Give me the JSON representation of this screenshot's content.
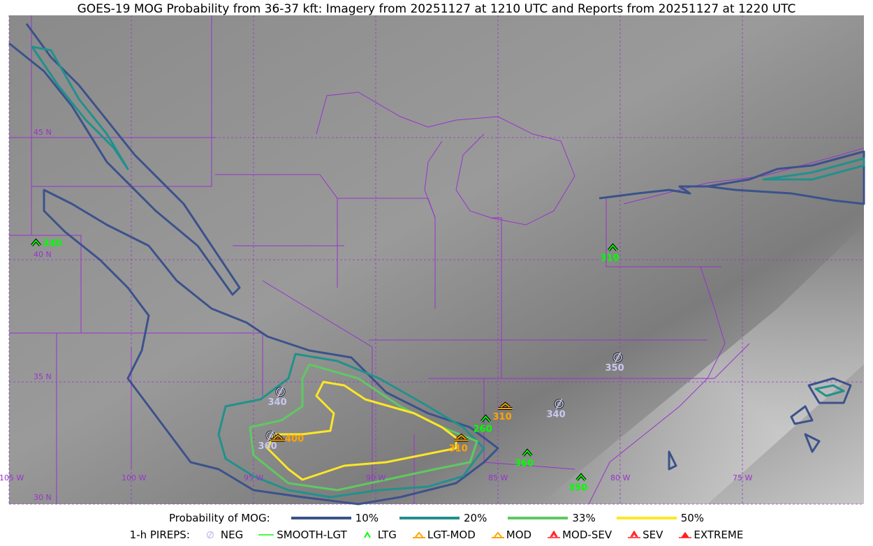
{
  "title": "GOES-19 MOG Probability from 36-37 kft: Imagery from 20251127 at 1210 UTC and Reports from 20251127 at 1220 UTC",
  "map": {
    "lon_labels": [
      "105 W",
      "100 W",
      "95 W",
      "90 W",
      "85 W",
      "80 W",
      "75 W"
    ],
    "lat_labels": [
      "45 N",
      "40 N",
      "35 N",
      "30 N"
    ],
    "colors": {
      "p10": "#3b528b",
      "p20": "#21918c",
      "p33": "#5ec962",
      "p50": "#fde725",
      "borders": "#9933cc",
      "neg": "#c8c8f0",
      "ltg": "#00ff00",
      "lgt_mod": "#ffa500"
    },
    "reports": [
      {
        "type": "LTG",
        "label": "340",
        "lon": -103.9,
        "lat": 40.7
      },
      {
        "type": "LTG",
        "label": "310",
        "lon": -80.3,
        "lat": 40.5
      },
      {
        "type": "NEG",
        "label": "350",
        "lon": -80.1,
        "lat": 36.0
      },
      {
        "type": "NEG",
        "label": "340",
        "lon": -93.9,
        "lat": 34.6
      },
      {
        "type": "NEG",
        "label": "340",
        "lon": -82.5,
        "lat": 34.1
      },
      {
        "type": "NEG",
        "label": "360",
        "lon": -94.3,
        "lat": 32.8
      },
      {
        "type": "LGT-MOD",
        "label": "400",
        "lon": -94.0,
        "lat": 32.7
      },
      {
        "type": "LGT-MOD",
        "label": "310",
        "lon": -84.7,
        "lat": 34.0
      },
      {
        "type": "LTG",
        "label": "260",
        "lon": -85.5,
        "lat": 33.5
      },
      {
        "type": "LGT-MOD",
        "label": "310",
        "lon": -86.5,
        "lat": 32.7
      },
      {
        "type": "LTG",
        "label": "360",
        "lon": -83.8,
        "lat": 32.1
      },
      {
        "type": "LTG",
        "label": "350",
        "lon": -81.6,
        "lat": 31.1
      }
    ]
  },
  "legend": {
    "prob_title": "Probability of MOG:",
    "prob_items": [
      {
        "label": "10%",
        "color": "#3b528b"
      },
      {
        "label": "20%",
        "color": "#21918c"
      },
      {
        "label": "33%",
        "color": "#5ec962"
      },
      {
        "label": "50%",
        "color": "#fde725"
      }
    ],
    "pirep_title": "1-h PIREPS:",
    "pirep_items": [
      {
        "label": "NEG",
        "icon": "neg-circle-slash",
        "color": "#c8c8f0"
      },
      {
        "label": "SMOOTH-LGT",
        "icon": "line",
        "color": "#00ff00"
      },
      {
        "label": "LTG",
        "icon": "caret",
        "color": "#00ff00"
      },
      {
        "label": "LGT-MOD",
        "icon": "caret-bar",
        "color": "#ffa500"
      },
      {
        "label": "MOD",
        "icon": "caret-bar",
        "color": "#ffa500"
      },
      {
        "label": "MOD-SEV",
        "icon": "double-caret",
        "color": "#ff2020"
      },
      {
        "label": "SEV",
        "icon": "double-caret",
        "color": "#ff2020"
      },
      {
        "label": "EXTREME",
        "icon": "filled-triangle",
        "color": "#ff2020"
      }
    ]
  }
}
